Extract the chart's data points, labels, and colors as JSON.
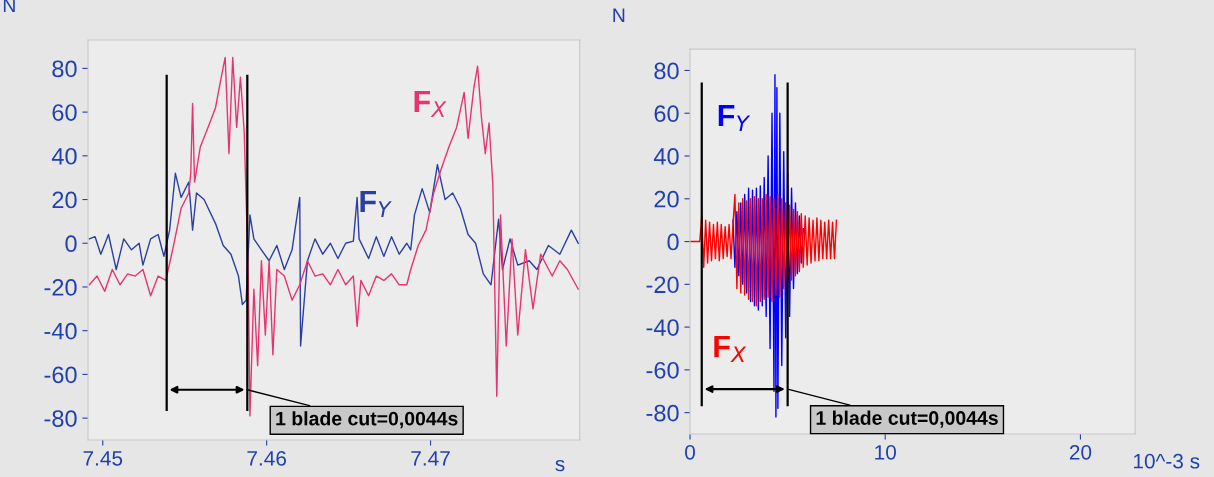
{
  "chart_data": [
    {
      "type": "line",
      "xlabel": "s",
      "ylabel": "N",
      "xlim": [
        7.4491,
        7.4791
      ],
      "ylim": [
        -90,
        93
      ],
      "xticks": [
        7.45,
        7.46,
        7.47
      ],
      "yticks": [
        -80,
        -60,
        -40,
        -20,
        0,
        20,
        40,
        60,
        80
      ],
      "series": [
        {
          "name": "F$_{Y}$",
          "color": "#2a3fa0",
          "x": [
            7.44918,
            7.44953,
            7.44988,
            7.45035,
            7.45082,
            7.45128,
            7.45175,
            7.45222,
            7.45245,
            7.45292,
            7.45338,
            7.45373,
            7.45408,
            7.45443,
            7.45478,
            7.45525,
            7.45548,
            7.45572,
            7.45618,
            7.45688,
            7.45735,
            7.45782,
            7.45828,
            7.45852,
            7.45875,
            7.45898,
            7.45922,
            7.45968,
            7.46015,
            7.46062,
            7.46108,
            7.46155,
            7.46202,
            7.46207,
            7.46249,
            7.46295,
            7.46342,
            7.46389,
            7.46435,
            7.46482,
            7.46529,
            7.46552,
            7.46564,
            7.46622,
            7.46669,
            7.46715,
            7.46762,
            7.46809,
            7.46855,
            7.46879,
            7.46902,
            7.46949,
            7.46995,
            7.47042,
            7.47089,
            7.47135,
            7.47182,
            7.47229,
            7.47275,
            7.47322,
            7.47369,
            7.47415,
            7.47439,
            7.47485,
            7.47532,
            7.47602,
            7.47649,
            7.47719,
            7.47789,
            7.47859,
            7.47901
          ],
          "values": [
            2,
            3,
            -5,
            4,
            -12,
            2,
            -3,
            0,
            -10,
            2,
            4,
            -6,
            6,
            32,
            21,
            28,
            6,
            23,
            20,
            9,
            -1,
            -5,
            -15,
            -28,
            -26,
            13,
            2,
            -3,
            -8,
            -1,
            -12,
            -3,
            21,
            -47,
            -8,
            2,
            -5,
            0,
            -7,
            0,
            1,
            21,
            2,
            -7,
            3,
            -6,
            3,
            -5,
            0,
            -3,
            13,
            25,
            14,
            36,
            20,
            23,
            16,
            4,
            0,
            -14,
            -19,
            11,
            -12,
            2,
            -10,
            -8,
            -12,
            -1,
            -5,
            6,
            0
          ]
        },
        {
          "name": "F$_{X}$",
          "color": "#e8336e",
          "x": [
            7.44918,
            7.44965,
            7.45012,
            7.45058,
            7.45105,
            7.45152,
            7.45198,
            7.45245,
            7.45292,
            7.45338,
            7.45385,
            7.45432,
            7.45478,
            7.45525,
            7.45537,
            7.45548,
            7.4556,
            7.45595,
            7.45642,
            7.45688,
            7.45723,
            7.45747,
            7.4577,
            7.45793,
            7.45817,
            7.4584,
            7.45863,
            7.45887,
            7.45898,
            7.45922,
            7.45945,
            7.45968,
            7.45992,
            7.46015,
            7.46038,
            7.46062,
            7.46108,
            7.46155,
            7.46202,
            7.46249,
            7.46295,
            7.46342,
            7.46389,
            7.46435,
            7.46482,
            7.46529,
            7.46552,
            7.46575,
            7.46622,
            7.46669,
            7.46715,
            7.46762,
            7.46809,
            7.46855,
            7.46879,
            7.46925,
            7.46972,
            7.47019,
            7.47065,
            7.47112,
            7.47159,
            7.47205,
            7.47229,
            7.47264,
            7.47287,
            7.4731,
            7.47334,
            7.47357,
            7.4738,
            7.47404,
            7.47427,
            7.47462,
            7.47497,
            7.47532,
            7.47579,
            7.47625,
            7.47672,
            7.47742,
            7.47789,
            7.47835,
            7.47901
          ],
          "values": [
            -19,
            -15,
            -22,
            -12,
            -19,
            -14,
            -15,
            -12,
            -24,
            -15,
            -17,
            -1,
            16,
            23,
            32,
            64,
            28,
            44,
            53,
            62,
            76,
            85,
            41,
            85,
            53,
            76,
            51,
            -12,
            -79,
            -21,
            -56,
            -8,
            -42,
            -8,
            -51,
            -12,
            -15,
            -26,
            -19,
            -8,
            -15,
            -14,
            -19,
            -12,
            -19,
            -15,
            -38,
            -17,
            -24,
            -15,
            -17,
            -14,
            -19,
            -19,
            -12,
            -1,
            6,
            23,
            34,
            44,
            53,
            69,
            48,
            71,
            81,
            58,
            41,
            55,
            27,
            -70,
            13,
            -47,
            2,
            -42,
            -3,
            -30,
            -5,
            -15,
            -8,
            -12,
            -21
          ]
        }
      ],
      "ref_lines": [
        {
          "axis": "x",
          "value": 7.4539,
          "color": "#000000"
        },
        {
          "axis": "x",
          "value": 7.45882,
          "color": "#000000"
        }
      ],
      "annotations": [
        {
          "text": "1 blade cut=0,0044s",
          "x": 7.45882,
          "y": -67
        }
      ]
    },
    {
      "type": "line",
      "xlabel": "10^-3 s",
      "ylabel": "N",
      "xlim": [
        0,
        22.8
      ],
      "ylim": [
        -90,
        90
      ],
      "xticks": [
        0,
        10,
        20
      ],
      "yticks": [
        -80,
        -60,
        -40,
        -20,
        0,
        20,
        40,
        60,
        80
      ],
      "series": [
        {
          "name": "F$_{Y}$",
          "color": "#0000ff",
          "x": [
            2.2,
            2.3,
            2.4,
            2.5,
            2.6,
            2.7,
            2.8,
            2.9,
            3.0,
            3.1,
            3.2,
            3.3,
            3.4,
            3.5,
            3.6,
            3.7,
            3.8,
            3.9,
            4.0,
            4.1,
            4.2,
            4.3,
            4.35,
            4.4,
            4.45,
            4.5,
            4.6,
            4.7,
            4.8,
            4.9,
            5.0,
            5.1,
            5.2,
            5.3,
            5.4,
            5.5,
            5.6,
            5.7,
            5.8
          ],
          "values": [
            10,
            -12,
            14,
            -16,
            18,
            -20,
            22,
            -24,
            25,
            -28,
            24,
            -30,
            25,
            -32,
            26,
            -30,
            30,
            -35,
            40,
            -50,
            60,
            -70,
            78,
            -82,
            72,
            -78,
            60,
            -58,
            42,
            -45,
            32,
            -35,
            25,
            -22,
            18,
            -15,
            12,
            -10,
            6
          ]
        },
        {
          "name": "F$_{X}$",
          "color": "#ff0000",
          "x": [
            0,
            0.5,
            0.6,
            0.7,
            0.8,
            0.9,
            1.0,
            1.1,
            1.2,
            1.3,
            1.4,
            1.5,
            1.6,
            1.7,
            1.8,
            1.9,
            2.0,
            2.1,
            2.2,
            2.3,
            2.4,
            2.5,
            2.6,
            2.7,
            2.8,
            2.9,
            3.0,
            3.1,
            3.2,
            3.3,
            3.4,
            3.5,
            3.6,
            3.7,
            3.8,
            3.9,
            4.0,
            4.1,
            4.2,
            4.3,
            4.4,
            4.5,
            4.6,
            4.7,
            4.8,
            4.9,
            5.0,
            5.1,
            5.2,
            5.3,
            5.4,
            5.5,
            5.6,
            5.7,
            5.8,
            5.9,
            6.0,
            6.1,
            6.2,
            6.3,
            6.4,
            6.5,
            6.6,
            6.7,
            6.8,
            6.9,
            7.0,
            7.1,
            7.2,
            7.3,
            7.4,
            7.5
          ],
          "values": [
            0,
            0,
            12,
            -12,
            10,
            -10,
            9,
            -9,
            8,
            -8,
            9,
            -9,
            8,
            -8,
            7,
            -7,
            8,
            -8,
            8,
            22,
            -22,
            18,
            -24,
            20,
            -25,
            19,
            -27,
            20,
            -28,
            21,
            -30,
            20,
            -28,
            20,
            -27,
            22,
            -26,
            21,
            -28,
            20,
            -25,
            22,
            -26,
            20,
            -22,
            18,
            -20,
            17,
            -18,
            15,
            -16,
            14,
            -14,
            13,
            -12,
            12,
            -11,
            11,
            -10,
            10,
            -9,
            11,
            -9,
            10,
            -8,
            9,
            -8,
            10,
            -8,
            9,
            -8,
            10
          ]
        }
      ],
      "ref_lines": [
        {
          "axis": "x",
          "value": 0.6,
          "color": "#000000"
        },
        {
          "axis": "x",
          "value": 5.0,
          "color": "#000000"
        }
      ],
      "annotations": [
        {
          "text": "1 blade cut=0,0044s",
          "x": 5.0,
          "y": -69
        }
      ]
    }
  ]
}
